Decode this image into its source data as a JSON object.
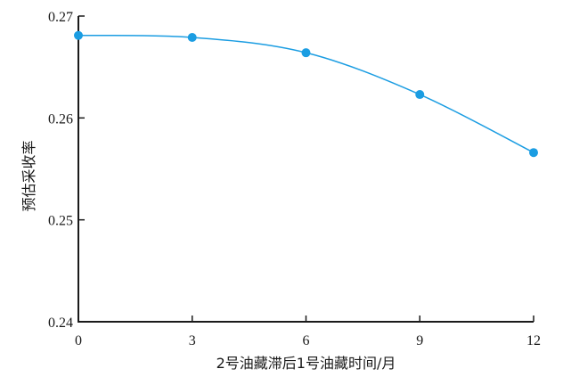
{
  "chart_data": {
    "type": "line",
    "title": "",
    "xlabel": "2号油藏滞后1号油藏时间/月",
    "ylabel": "预估采收率",
    "xlim": [
      0,
      12
    ],
    "ylim": [
      0.24,
      0.27
    ],
    "xticks": [
      0,
      3,
      6,
      9,
      12
    ],
    "xtick_labels": [
      "0",
      "3",
      "6",
      "9",
      "12"
    ],
    "yticks": [
      0.24,
      0.25,
      0.26,
      0.27
    ],
    "ytick_labels": [
      "0.24",
      "0.25",
      "0.26",
      "0.27"
    ],
    "grid": false,
    "series": [
      {
        "color": "#1b9de2",
        "smooth": true,
        "markers": true,
        "x": [
          0,
          3,
          6,
          9,
          12
        ],
        "y": [
          0.2681,
          0.2679,
          0.2664,
          0.2623,
          0.2566
        ]
      }
    ]
  }
}
